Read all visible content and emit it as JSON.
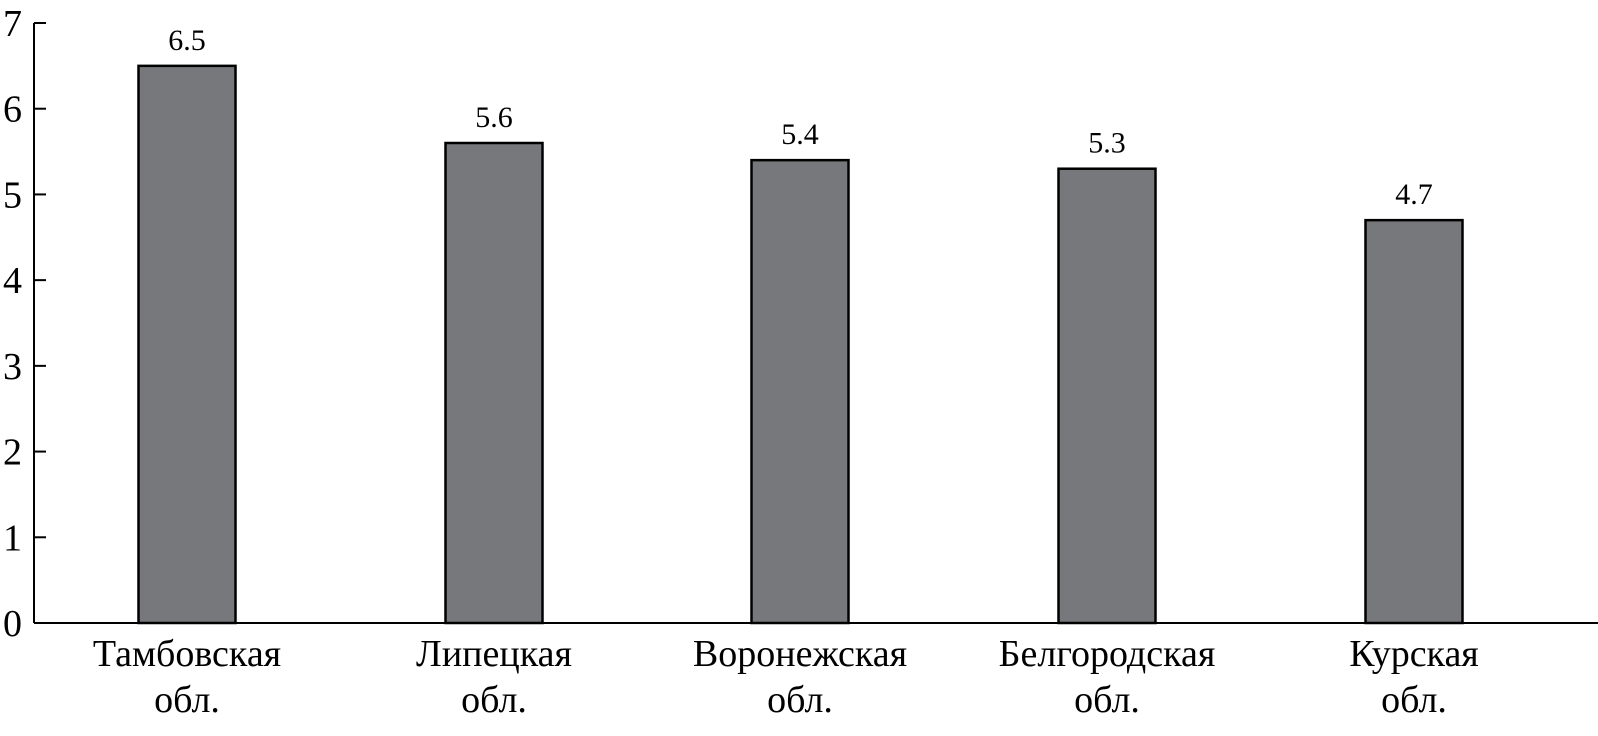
{
  "chart_data": {
    "type": "bar",
    "categories": [
      [
        "Тамбовская",
        "обл."
      ],
      [
        "Липецкая",
        "обл."
      ],
      [
        "Воронежская",
        "обл."
      ],
      [
        "Белгородская",
        "обл."
      ],
      [
        "Курская",
        "обл."
      ]
    ],
    "values": [
      6.5,
      5.6,
      5.4,
      5.3,
      4.7
    ],
    "data_labels": [
      "6.5",
      "5.6",
      "5.4",
      "5.3",
      "4.7"
    ],
    "ylim": [
      0,
      7
    ],
    "yticks": [
      0,
      1,
      2,
      3,
      4,
      5,
      6,
      7
    ],
    "bar_color": "#77787c",
    "grid": false,
    "legend": "none"
  }
}
